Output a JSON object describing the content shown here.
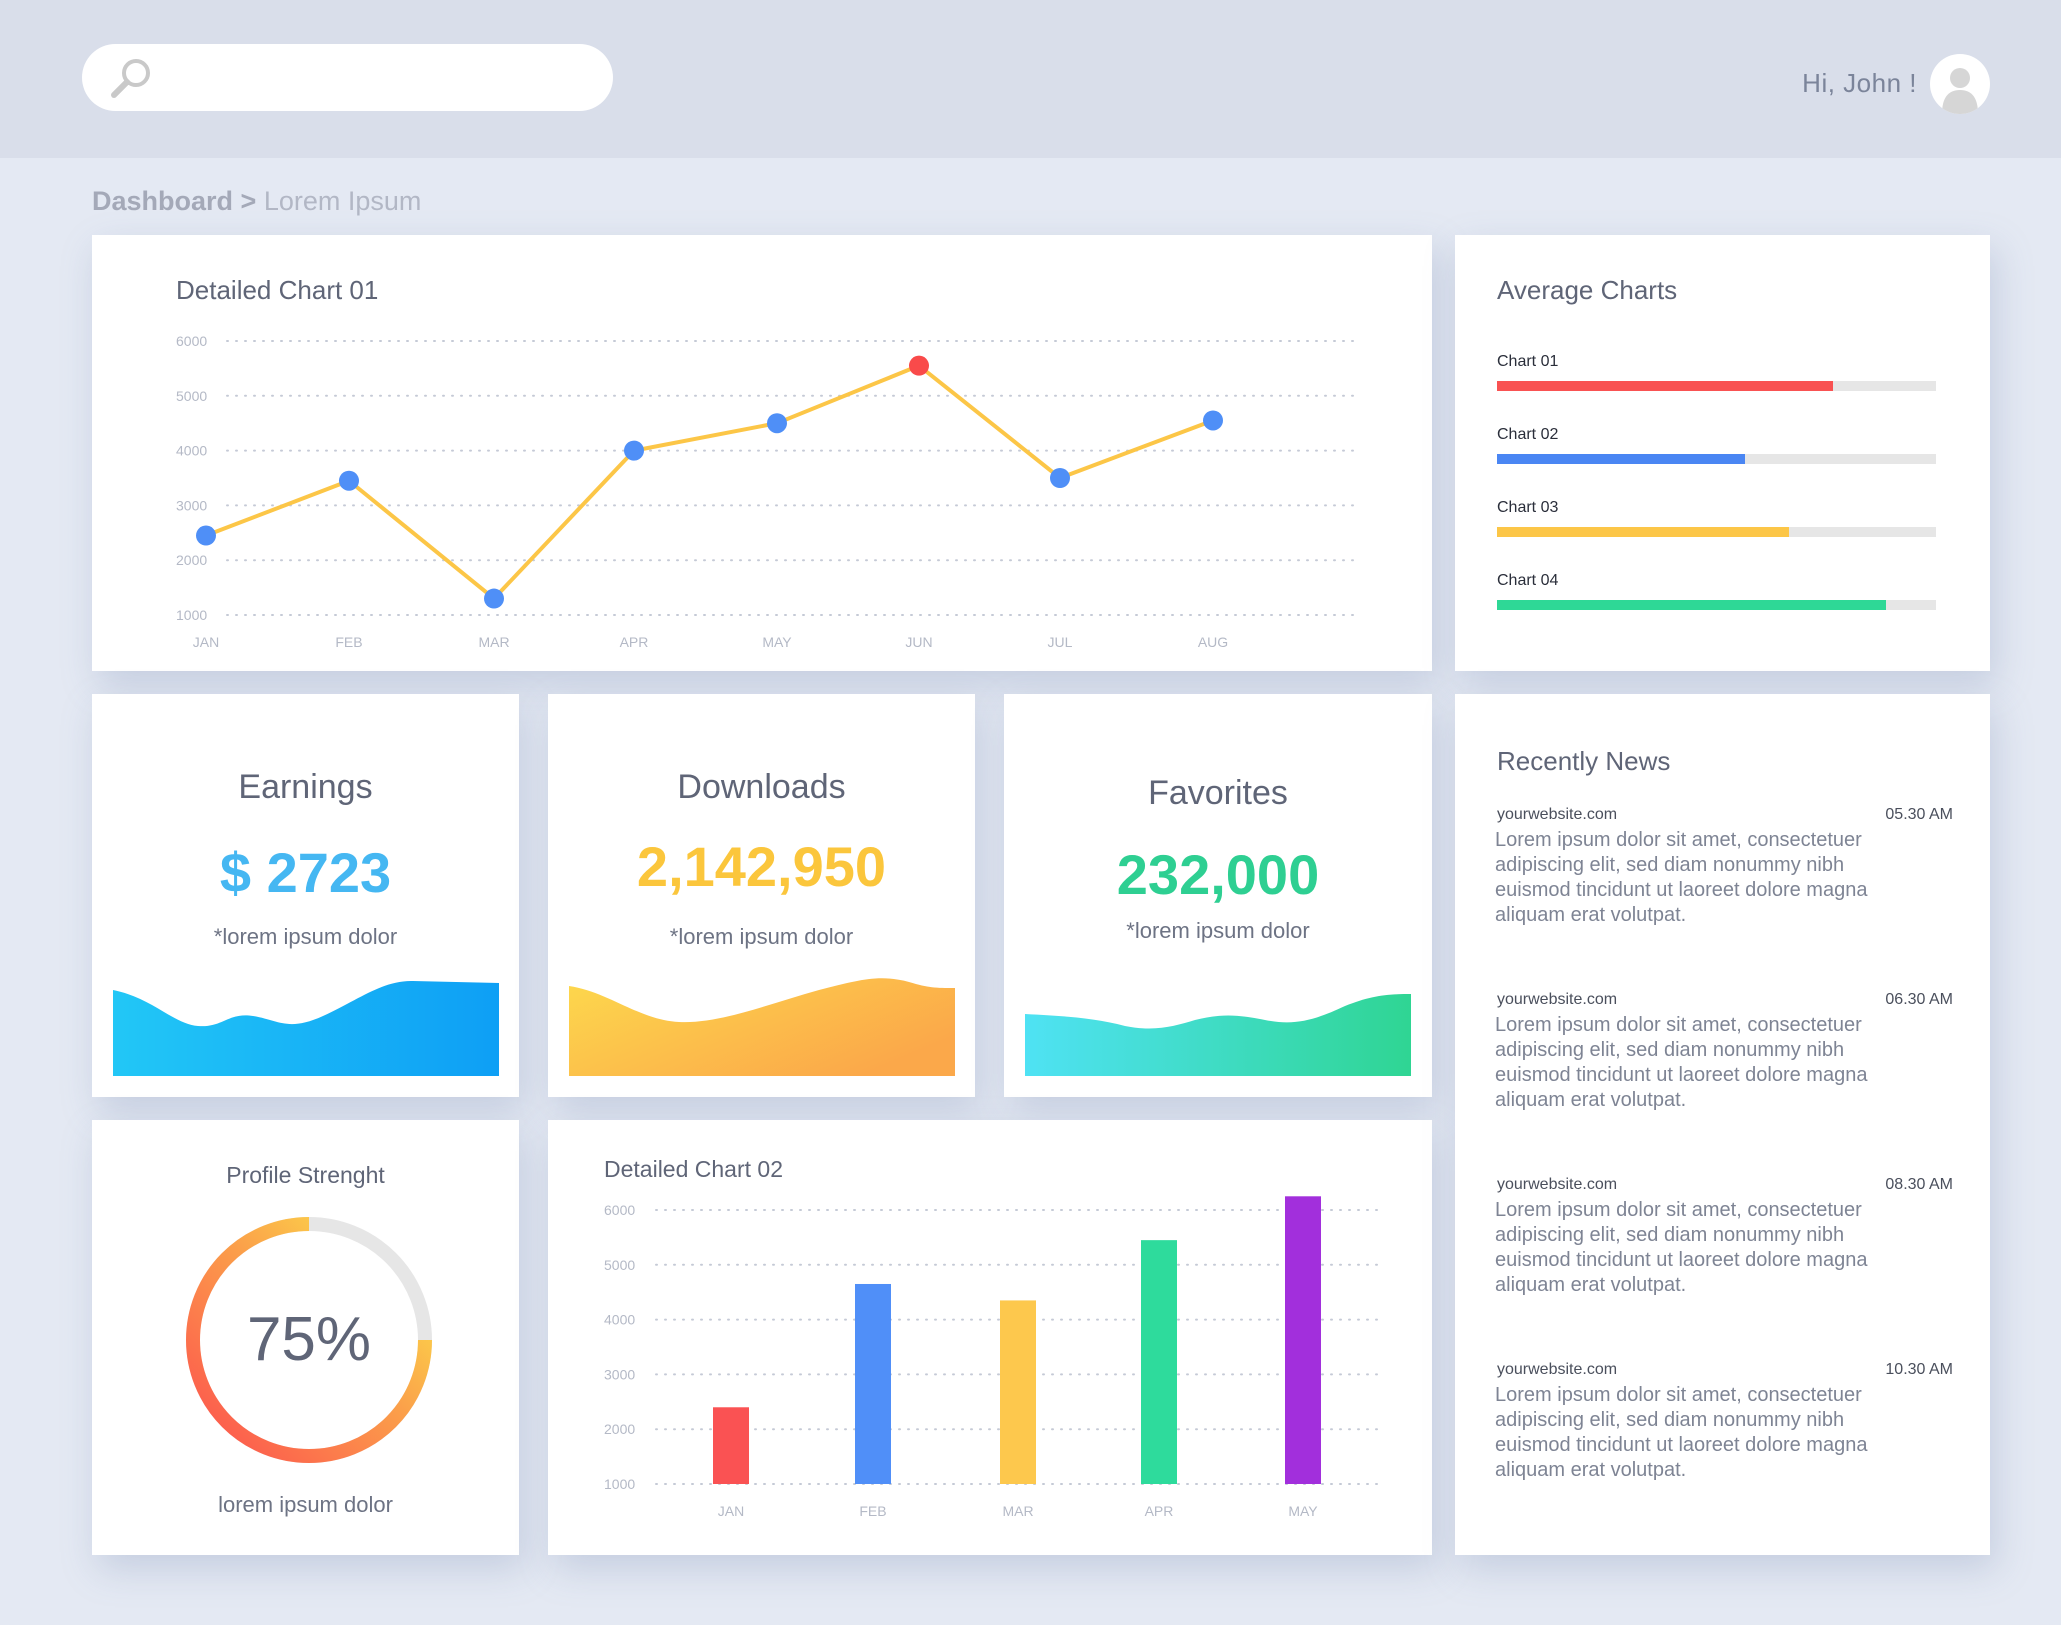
{
  "header": {
    "search": {
      "placeholder": "",
      "icon": "search-icon"
    },
    "greeting": "Hi, John !",
    "avatar_icon": "user-avatar-icon"
  },
  "breadcrumb": {
    "root": "Dashboard",
    "separator": " > ",
    "current": "Lorem Ipsum"
  },
  "chart1": {
    "title": "Detailed Chart 01",
    "chart_data": {
      "type": "line",
      "categories": [
        "JAN",
        "FEB",
        "MAR",
        "APR",
        "MAY",
        "JUN",
        "JUL",
        "AUG"
      ],
      "values": [
        2450,
        3450,
        1300,
        4000,
        4500,
        5550,
        3500,
        4550
      ],
      "highlight_index": 5,
      "yticks": [
        6000,
        5000,
        4000,
        3000,
        2000,
        1000
      ],
      "ylim": [
        1000,
        6000
      ],
      "grid": true,
      "colors": {
        "line": "#fcc647",
        "point": "#4f8ff7",
        "highlight": "#f94a4a"
      }
    }
  },
  "average": {
    "title": "Average Charts",
    "items": [
      {
        "label": "Chart 01",
        "value": 0.765,
        "color": "#f95252"
      },
      {
        "label": "Chart 02",
        "value": 0.565,
        "color": "#4a86f3"
      },
      {
        "label": "Chart 03",
        "value": 0.665,
        "color": "#fcc647"
      },
      {
        "label": "Chart 04",
        "value": 0.885,
        "color": "#2ed896"
      }
    ]
  },
  "stats": {
    "earnings": {
      "title": "Earnings",
      "value": "$ 2723",
      "sub": "*lorem ipsum dolor",
      "color": "#45b7f2"
    },
    "downloads": {
      "title": "Downloads",
      "value": "2,142,950",
      "sub": "*lorem ipsum dolor",
      "color": "#fbc63c"
    },
    "favorites": {
      "title": "Favorites",
      "value": "232,000",
      "sub": "*lorem ipsum dolor",
      "color": "#2ecf92"
    }
  },
  "profile": {
    "title": "Profile Strenght",
    "percent_label": "75%",
    "value": 0.75,
    "sub": "lorem ipsum dolor"
  },
  "chart2": {
    "title": "Detailed Chart 02",
    "chart_data": {
      "type": "bar",
      "categories": [
        "JAN",
        "FEB",
        "MAR",
        "APR",
        "MAY"
      ],
      "values": [
        2400,
        4650,
        4350,
        5450,
        6250
      ],
      "colors": [
        "#fa5253",
        "#508ff8",
        "#fdc84d",
        "#2edb9c",
        "#a22fdc"
      ],
      "yticks": [
        6000,
        5000,
        4000,
        3000,
        2000,
        1000
      ],
      "ylim": [
        1000,
        6000
      ],
      "grid": true
    }
  },
  "news": {
    "title": "Recently News",
    "items": [
      {
        "source": "yourwebsite.com",
        "time": "05.30 AM",
        "lines": [
          "Lorem ipsum dolor sit amet, consectetuer",
          "adipiscing elit, sed diam nonummy nibh",
          "euismod tincidunt ut laoreet dolore magna",
          "aliquam erat volutpat."
        ]
      },
      {
        "source": "yourwebsite.com",
        "time": "06.30 AM",
        "lines": [
          "Lorem ipsum dolor sit amet, consectetuer",
          "adipiscing elit, sed diam nonummy nibh",
          "euismod tincidunt ut laoreet dolore magna",
          "aliquam erat volutpat."
        ]
      },
      {
        "source": "yourwebsite.com",
        "time": "08.30 AM",
        "lines": [
          "Lorem ipsum dolor sit amet, consectetuer",
          "adipiscing elit, sed diam nonummy nibh",
          "euismod tincidunt ut laoreet dolore magna",
          "aliquam erat volutpat."
        ]
      },
      {
        "source": "yourwebsite.com",
        "time": "10.30 AM",
        "lines": [
          "Lorem ipsum dolor sit amet, consectetuer",
          "adipiscing elit, sed diam nonummy nibh",
          "euismod tincidunt ut laoreet dolore magna",
          "aliquam erat volutpat."
        ]
      }
    ]
  }
}
